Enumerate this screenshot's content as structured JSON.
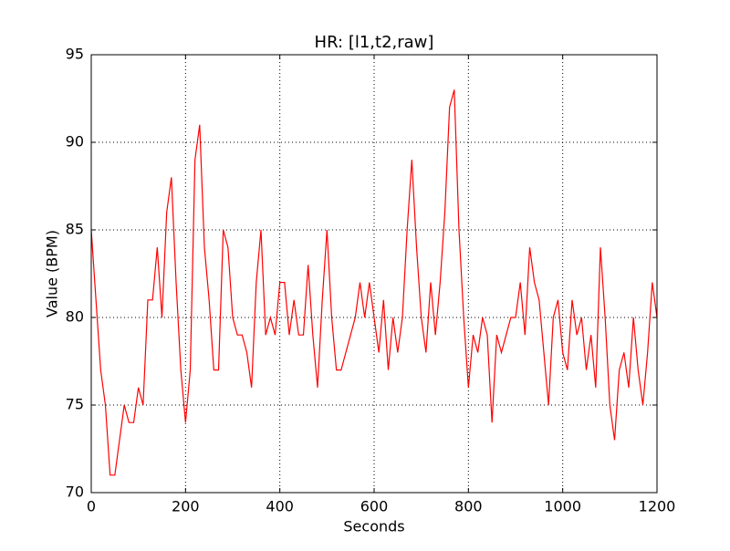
{
  "chart_data": {
    "type": "line",
    "title": "HR: [l1,t2,raw]",
    "x_label": "Seconds",
    "y_label": "Value (BPM)",
    "x": [
      0,
      10,
      20,
      30,
      40,
      50,
      60,
      70,
      80,
      90,
      100,
      110,
      120,
      130,
      140,
      150,
      160,
      170,
      180,
      190,
      200,
      210,
      220,
      230,
      240,
      250,
      260,
      270,
      280,
      290,
      300,
      310,
      320,
      330,
      340,
      350,
      360,
      370,
      380,
      390,
      400,
      410,
      420,
      430,
      440,
      450,
      460,
      470,
      480,
      490,
      500,
      510,
      520,
      530,
      540,
      550,
      560,
      570,
      580,
      590,
      600,
      610,
      620,
      630,
      640,
      650,
      660,
      670,
      680,
      690,
      700,
      710,
      720,
      730,
      740,
      750,
      760,
      770,
      780,
      790,
      800,
      810,
      820,
      830,
      840,
      850,
      860,
      870,
      880,
      890,
      900,
      910,
      920,
      930,
      940,
      950,
      960,
      970,
      980,
      990,
      1000,
      1010,
      1020,
      1030,
      1040,
      1050,
      1060,
      1070,
      1080,
      1090,
      1100,
      1110,
      1120,
      1130,
      1140,
      1150,
      1160,
      1170,
      1180,
      1190,
      1200
    ],
    "values": [
      85,
      81,
      77,
      75,
      71,
      71,
      73,
      75,
      74,
      74,
      76,
      75,
      81,
      81,
      84,
      80,
      86,
      88,
      82,
      77,
      74,
      77,
      89,
      91,
      84,
      81,
      77,
      77,
      85,
      84,
      80,
      79,
      79,
      78,
      76,
      82,
      85,
      79,
      80,
      79,
      82,
      82,
      79,
      81,
      79,
      79,
      83,
      79,
      76,
      81,
      85,
      80,
      77,
      77,
      78,
      79,
      80,
      82,
      80,
      82,
      80,
      78,
      81,
      77,
      80,
      78,
      80,
      85,
      89,
      84,
      80,
      78,
      82,
      79,
      82,
      86,
      92,
      93,
      85,
      80,
      76,
      79,
      78,
      80,
      79,
      74,
      79,
      78,
      79,
      80,
      80,
      82,
      79,
      84,
      82,
      81,
      78,
      75,
      80,
      81,
      78,
      77,
      81,
      79,
      80,
      77,
      79,
      76,
      84,
      80,
      75,
      73,
      77,
      78,
      76,
      80,
      77,
      75,
      78,
      82,
      80
    ],
    "color": "#ff0000",
    "xlim": [
      0,
      1200
    ],
    "xticks": [
      0,
      200,
      400,
      600,
      800,
      1000,
      1200
    ],
    "ylim": [
      70,
      95
    ],
    "yticks": [
      70,
      75,
      80,
      85,
      90,
      95
    ],
    "grid": true
  }
}
